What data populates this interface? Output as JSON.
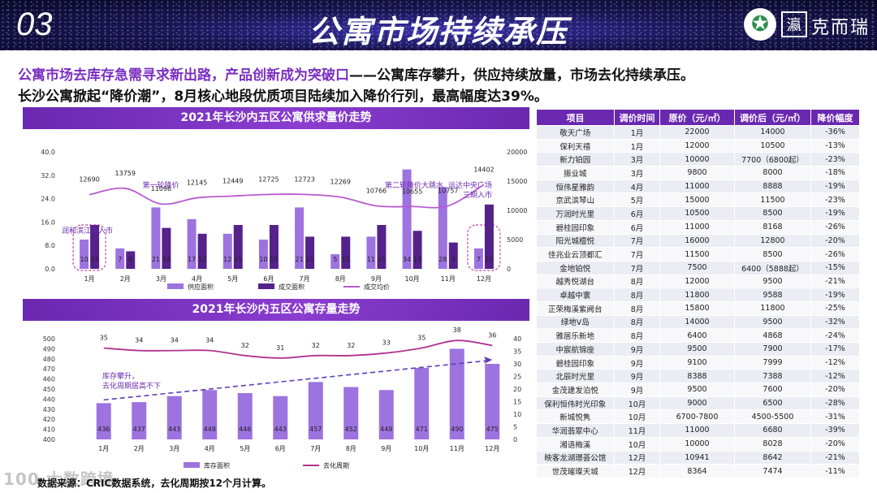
{
  "banner": {
    "number": "03",
    "title": "公寓市场持续承压",
    "seal": "瀛",
    "brand": "克而瑞"
  },
  "headline": {
    "highlight": "公寓市场去库存急需寻求新出路，产品创新成为突破口",
    "rest": "——公寓库存攀升，供应持续放量，市场去化持续承压。"
  },
  "subline": "长沙公寓掀起“降价潮”，8月核心地段优质项目陆续加入降价行列，最高幅度达39%。",
  "colors": {
    "accent": "#6a28b0",
    "supply": "#9d73e0",
    "deal": "#55218a",
    "price_line": "#b85ad0",
    "stock": "#9d73e0",
    "cycle_line": "#b0328f",
    "annot": "#6a28b0"
  },
  "chart1": {
    "title": "2021年长沙内五区公寓供求量价走势",
    "categories": [
      "1月",
      "2月",
      "3月",
      "4月",
      "5月",
      "6月",
      "7月",
      "8月",
      "9月",
      "10月",
      "11月",
      "12月"
    ],
    "supply": [
      10,
      7,
      21,
      17,
      12,
      10,
      21,
      5,
      11,
      34,
      28,
      7
    ],
    "deal": [
      15,
      6,
      14,
      12,
      15,
      15,
      11,
      11,
      15,
      13,
      9,
      22
    ],
    "price": [
      12690,
      13759,
      11096,
      12145,
      12449,
      12725,
      12723,
      12269,
      10766,
      10655,
      10757,
      14402
    ],
    "y_left_ticks": [
      "0.0",
      "8.0",
      "16.0",
      "24.0",
      "32.0",
      "40.0"
    ],
    "y_right_ticks": [
      "0",
      "5000",
      "10000",
      "15000",
      "20000"
    ],
    "legend": [
      "供应面积",
      "成交面积",
      "成交均价"
    ],
    "annotations": [
      "第一轮降价",
      "第二轮降价大跳水",
      "润和滨江湾入市",
      "运达中央广场三期入市"
    ]
  },
  "chart2": {
    "title": "2021年长沙内五区公寓存量走势",
    "categories": [
      "1月",
      "2月",
      "3月",
      "4月",
      "5月",
      "6月",
      "7月",
      "8月",
      "9月",
      "10月",
      "11月",
      "12月"
    ],
    "stock": [
      436,
      437,
      443,
      449,
      446,
      443,
      457,
      452,
      449,
      471,
      490,
      475
    ],
    "cycle": [
      35,
      34,
      34,
      34,
      32,
      31,
      32,
      32,
      33,
      35,
      38,
      36
    ],
    "y_left_ticks": [
      "400",
      "410",
      "420",
      "430",
      "440",
      "450",
      "460",
      "470",
      "480",
      "490",
      "500"
    ],
    "y_right_ticks": [
      "0",
      "5",
      "10",
      "15",
      "20",
      "25",
      "30",
      "35",
      "40"
    ],
    "legend": [
      "库存面积",
      "去化周期"
    ],
    "annotation": "库存攀升，\n去化周期居高不下"
  },
  "table": {
    "headers": [
      "项目",
      "调价时间",
      "原价（元/㎡）",
      "调价后（元/㎡）",
      "降价幅度"
    ],
    "rows": [
      [
        "敬天广场",
        "1月",
        "22000",
        "14000",
        "-36%"
      ],
      [
        "保利天禧",
        "1月",
        "12000",
        "10500",
        "-13%"
      ],
      [
        "新力铂园",
        "3月",
        "10000",
        "7700（6800起）",
        "-23%"
      ],
      [
        "振业城",
        "3月",
        "9800",
        "8000",
        "-18%"
      ],
      [
        "恒伟星雅韵",
        "4月",
        "11000",
        "8888",
        "-19%"
      ],
      [
        "京武滨琴山",
        "5月",
        "15000",
        "11500",
        "-23%"
      ],
      [
        "万润时光里",
        "6月",
        "10500",
        "8500",
        "-19%"
      ],
      [
        "碧桂园印象",
        "6月",
        "11000",
        "8168",
        "-26%"
      ],
      [
        "阳光城檀悦",
        "7月",
        "16000",
        "12800",
        "-20%"
      ],
      [
        "佳兆业云顶都汇",
        "7月",
        "11500",
        "8500",
        "-26%"
      ],
      [
        "金地铂悦",
        "7月",
        "7500",
        "6400（5888起）",
        "-15%"
      ],
      [
        "越秀悦湖台",
        "8月",
        "12000",
        "9500",
        "-21%"
      ],
      [
        "卓越中寰",
        "8月",
        "11800",
        "9588",
        "-19%"
      ],
      [
        "正荣梅溪紫阙台",
        "8月",
        "15800",
        "11800",
        "-25%"
      ],
      [
        "绿地V岛",
        "8月",
        "14000",
        "9500",
        "-32%"
      ],
      [
        "雅居乐新地",
        "8月",
        "6400",
        "4868",
        "-24%"
      ],
      [
        "中宸航锦座",
        "9月",
        "9500",
        "7900",
        "-17%"
      ],
      [
        "碧桂园印象",
        "9月",
        "9100",
        "7999",
        "-12%"
      ],
      [
        "北辰时光里",
        "9月",
        "8388",
        "7388",
        "-12%"
      ],
      [
        "金茂建发泊悦",
        "9月",
        "9500",
        "7600",
        "-20%"
      ],
      [
        "保利恒伟时光印象",
        "10月",
        "9000",
        "6500",
        "-28%"
      ],
      [
        "新城悦隽",
        "10月",
        "6700-7800",
        "4500-5500",
        "-31%"
      ],
      [
        "华润翡翠中心",
        "11月",
        "11000",
        "6680",
        "-39%"
      ],
      [
        "湘语梅溪",
        "10月",
        "10000",
        "8028",
        "-20%"
      ],
      [
        "映客龙湖璟荟公馆",
        "12月",
        "10941",
        "8642",
        "-21%"
      ],
      [
        "世茂璀璨天城",
        "12月",
        "8364",
        "7474",
        "-11%"
      ]
    ]
  },
  "footnote": "数据来源：CRIC数据系统，去化周期按12个月计算。",
  "watermark": "100 大数跨境"
}
